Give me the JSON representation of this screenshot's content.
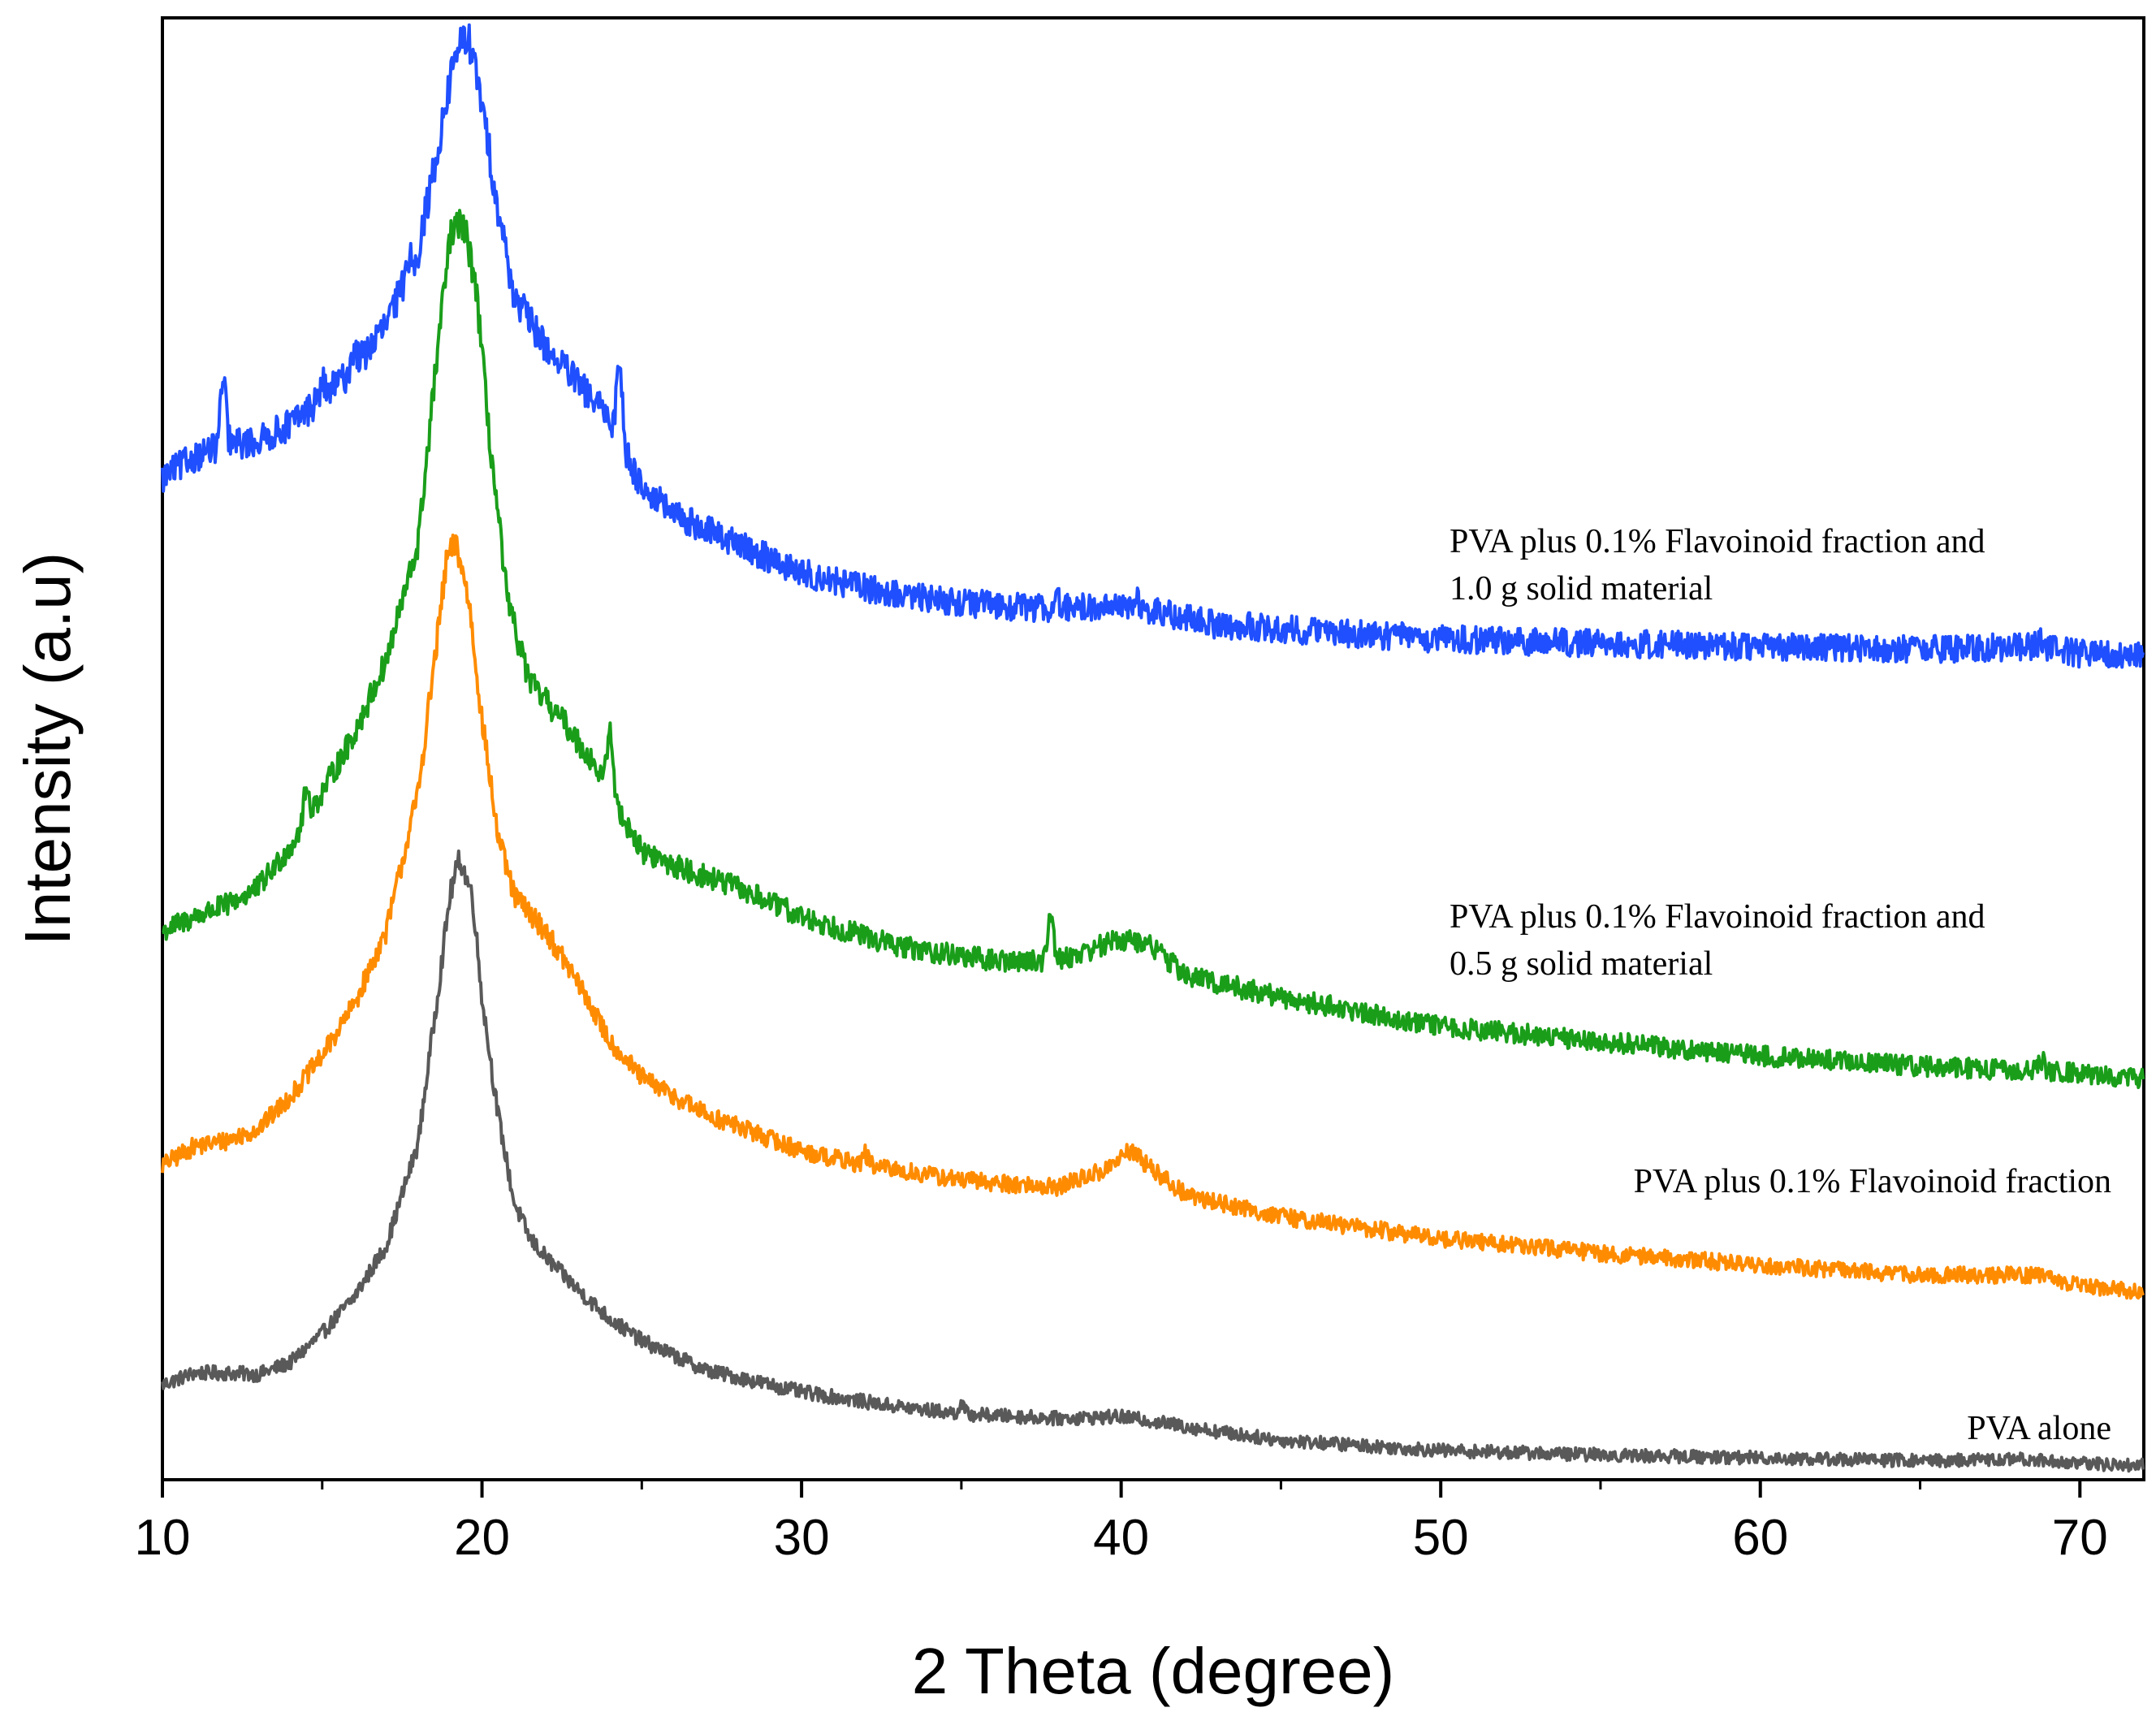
{
  "chart_data": {
    "type": "line",
    "title": "",
    "xlabel": "2 Theta (degree)",
    "ylabel": "Intensity (a.u)",
    "xlim": [
      10,
      72
    ],
    "ylim": [
      0,
      1.0
    ],
    "x_ticks": [
      10,
      20,
      30,
      40,
      50,
      60,
      70
    ],
    "x_minor_ticks": [
      15,
      25,
      35,
      45,
      55,
      65
    ],
    "y_tick_labels": false,
    "grid": false,
    "legend": "inline labels beside each curve (right side)",
    "series": [
      {
        "name": "PVA alone",
        "label_lines": [
          "PVA alone"
        ],
        "color": "#595959",
        "points": [
          [
            10,
            0.065
          ],
          [
            11,
            0.073
          ],
          [
            12,
            0.073
          ],
          [
            13,
            0.072
          ],
          [
            14,
            0.08
          ],
          [
            15,
            0.1
          ],
          [
            16,
            0.125
          ],
          [
            17,
            0.16
          ],
          [
            18,
            0.23
          ],
          [
            18.6,
            0.33
          ],
          [
            19.0,
            0.4
          ],
          [
            19.3,
            0.425
          ],
          [
            19.7,
            0.4
          ],
          [
            20.0,
            0.33
          ],
          [
            20.5,
            0.25
          ],
          [
            21.0,
            0.19
          ],
          [
            21.5,
            0.165
          ],
          [
            22.0,
            0.152
          ],
          [
            23.0,
            0.13
          ],
          [
            24.0,
            0.11
          ],
          [
            25.0,
            0.095
          ],
          [
            27.0,
            0.075
          ],
          [
            30.0,
            0.06
          ],
          [
            33.0,
            0.05
          ],
          [
            35.0,
            0.045
          ],
          [
            38.0,
            0.042
          ],
          [
            40.0,
            0.043
          ],
          [
            41.0,
            0.04
          ],
          [
            43.0,
            0.033
          ],
          [
            45.0,
            0.027
          ],
          [
            50.0,
            0.02
          ],
          [
            55.0,
            0.017
          ],
          [
            60.0,
            0.015
          ],
          [
            65.0,
            0.013
          ],
          [
            68.5,
            0.014
          ],
          [
            70.0,
            0.011
          ],
          [
            72.0,
            0.01
          ]
        ],
        "sharp_peaks": [
          [
            35.0,
            0.006
          ]
        ]
      },
      {
        "name": "PVA plus 0.1% Flavoinoid fraction",
        "label_lines": [
          "PVA plus 0.1% Flavoinoid fraction"
        ],
        "color": "#FF8C00",
        "points": [
          [
            10,
            0.215
          ],
          [
            11,
            0.228
          ],
          [
            12,
            0.232
          ],
          [
            13,
            0.24
          ],
          [
            14,
            0.262
          ],
          [
            15,
            0.29
          ],
          [
            16,
            0.325
          ],
          [
            17,
            0.375
          ],
          [
            18,
            0.47
          ],
          [
            18.6,
            0.575
          ],
          [
            18.9,
            0.63
          ],
          [
            19.2,
            0.64
          ],
          [
            19.6,
            0.6
          ],
          [
            20.0,
            0.52
          ],
          [
            20.5,
            0.44
          ],
          [
            21.0,
            0.4
          ],
          [
            22.0,
            0.375
          ],
          [
            23.0,
            0.34
          ],
          [
            24.0,
            0.3
          ],
          [
            25.0,
            0.275
          ],
          [
            27.0,
            0.25
          ],
          [
            30.0,
            0.225
          ],
          [
            32.0,
            0.215
          ],
          [
            35.0,
            0.205
          ],
          [
            38.0,
            0.2
          ],
          [
            39.5,
            0.212
          ],
          [
            40.3,
            0.225
          ],
          [
            41.0,
            0.212
          ],
          [
            42.0,
            0.195
          ],
          [
            45.0,
            0.18
          ],
          [
            50.0,
            0.165
          ],
          [
            55.0,
            0.155
          ],
          [
            60.0,
            0.147
          ],
          [
            65.0,
            0.14
          ],
          [
            68.5,
            0.14
          ],
          [
            70.0,
            0.133
          ],
          [
            72.0,
            0.128
          ]
        ],
        "sharp_peaks": [
          [
            32.0,
            0.008
          ]
        ]
      },
      {
        "name": "PVA plus 0.1% Flavoinoid fraction and 0.5 g solid material",
        "label_lines": [
          "PVA plus 0.1% Flavoinoid fraction and",
          "0.5 g solid material"
        ],
        "color": "#1A9E1A",
        "points": [
          [
            10,
            0.375
          ],
          [
            11,
            0.385
          ],
          [
            12,
            0.393
          ],
          [
            13,
            0.405
          ],
          [
            14,
            0.433
          ],
          [
            15,
            0.47
          ],
          [
            16,
            0.51
          ],
          [
            17,
            0.56
          ],
          [
            18,
            0.64
          ],
          [
            18.6,
            0.77
          ],
          [
            19.0,
            0.85
          ],
          [
            19.4,
            0.86
          ],
          [
            19.8,
            0.82
          ],
          [
            20.2,
            0.72
          ],
          [
            20.8,
            0.6
          ],
          [
            21.5,
            0.545
          ],
          [
            22.5,
            0.52
          ],
          [
            23.5,
            0.49
          ],
          [
            24.0,
            0.47
          ],
          [
            25.0,
            0.43
          ],
          [
            26.0,
            0.42
          ],
          [
            28.0,
            0.405
          ],
          [
            30.0,
            0.385
          ],
          [
            33.0,
            0.365
          ],
          [
            36.0,
            0.355
          ],
          [
            38.0,
            0.355
          ],
          [
            40.0,
            0.37
          ],
          [
            41.0,
            0.365
          ],
          [
            42.0,
            0.345
          ],
          [
            45.0,
            0.33
          ],
          [
            50.0,
            0.31
          ],
          [
            55.0,
            0.3
          ],
          [
            60.0,
            0.29
          ],
          [
            65.0,
            0.283
          ],
          [
            70.0,
            0.278
          ],
          [
            72.0,
            0.274
          ]
        ],
        "sharp_peaks": [
          [
            14.5,
            0.02
          ],
          [
            24.0,
            0.045
          ],
          [
            37.8,
            0.035
          ],
          [
            68.8,
            0.008
          ]
        ]
      },
      {
        "name": "PVA plus 0.1% Flavoinoid fraction and 1.0 g solid material",
        "label_lines": [
          "PVA plus 0.1% Flavoinoid fraction and",
          "1.0 g solid material"
        ],
        "color": "#1F4FFF",
        "points": [
          [
            10,
            0.685
          ],
          [
            11,
            0.7
          ],
          [
            12,
            0.708
          ],
          [
            13,
            0.71
          ],
          [
            14,
            0.722
          ],
          [
            15,
            0.74
          ],
          [
            16,
            0.76
          ],
          [
            17,
            0.79
          ],
          [
            18,
            0.84
          ],
          [
            18.7,
            0.92
          ],
          [
            19.2,
            0.98
          ],
          [
            19.6,
            0.985
          ],
          [
            20.0,
            0.94
          ],
          [
            20.5,
            0.87
          ],
          [
            21.0,
            0.81
          ],
          [
            22.0,
            0.775
          ],
          [
            23.0,
            0.75
          ],
          [
            24.0,
            0.725
          ],
          [
            25.0,
            0.68
          ],
          [
            26.0,
            0.66
          ],
          [
            28.0,
            0.64
          ],
          [
            30.0,
            0.62
          ],
          [
            33.0,
            0.605
          ],
          [
            36.0,
            0.598
          ],
          [
            38.0,
            0.596
          ],
          [
            40.0,
            0.598
          ],
          [
            41.0,
            0.594
          ],
          [
            43.0,
            0.585
          ],
          [
            45.0,
            0.582
          ],
          [
            50.0,
            0.575
          ],
          [
            55.0,
            0.572
          ],
          [
            60.0,
            0.57
          ],
          [
            65.0,
            0.568
          ],
          [
            68.7,
            0.57
          ],
          [
            70.0,
            0.565
          ],
          [
            72.0,
            0.563
          ]
        ],
        "sharp_peaks": [
          [
            11.9,
            0.045
          ],
          [
            15.0,
            0.01
          ],
          [
            16.0,
            0.014
          ],
          [
            17.7,
            0.012
          ],
          [
            24.3,
            0.055
          ],
          [
            38.0,
            0.006
          ],
          [
            40.5,
            0.006
          ],
          [
            68.8,
            0.006
          ]
        ]
      }
    ]
  }
}
